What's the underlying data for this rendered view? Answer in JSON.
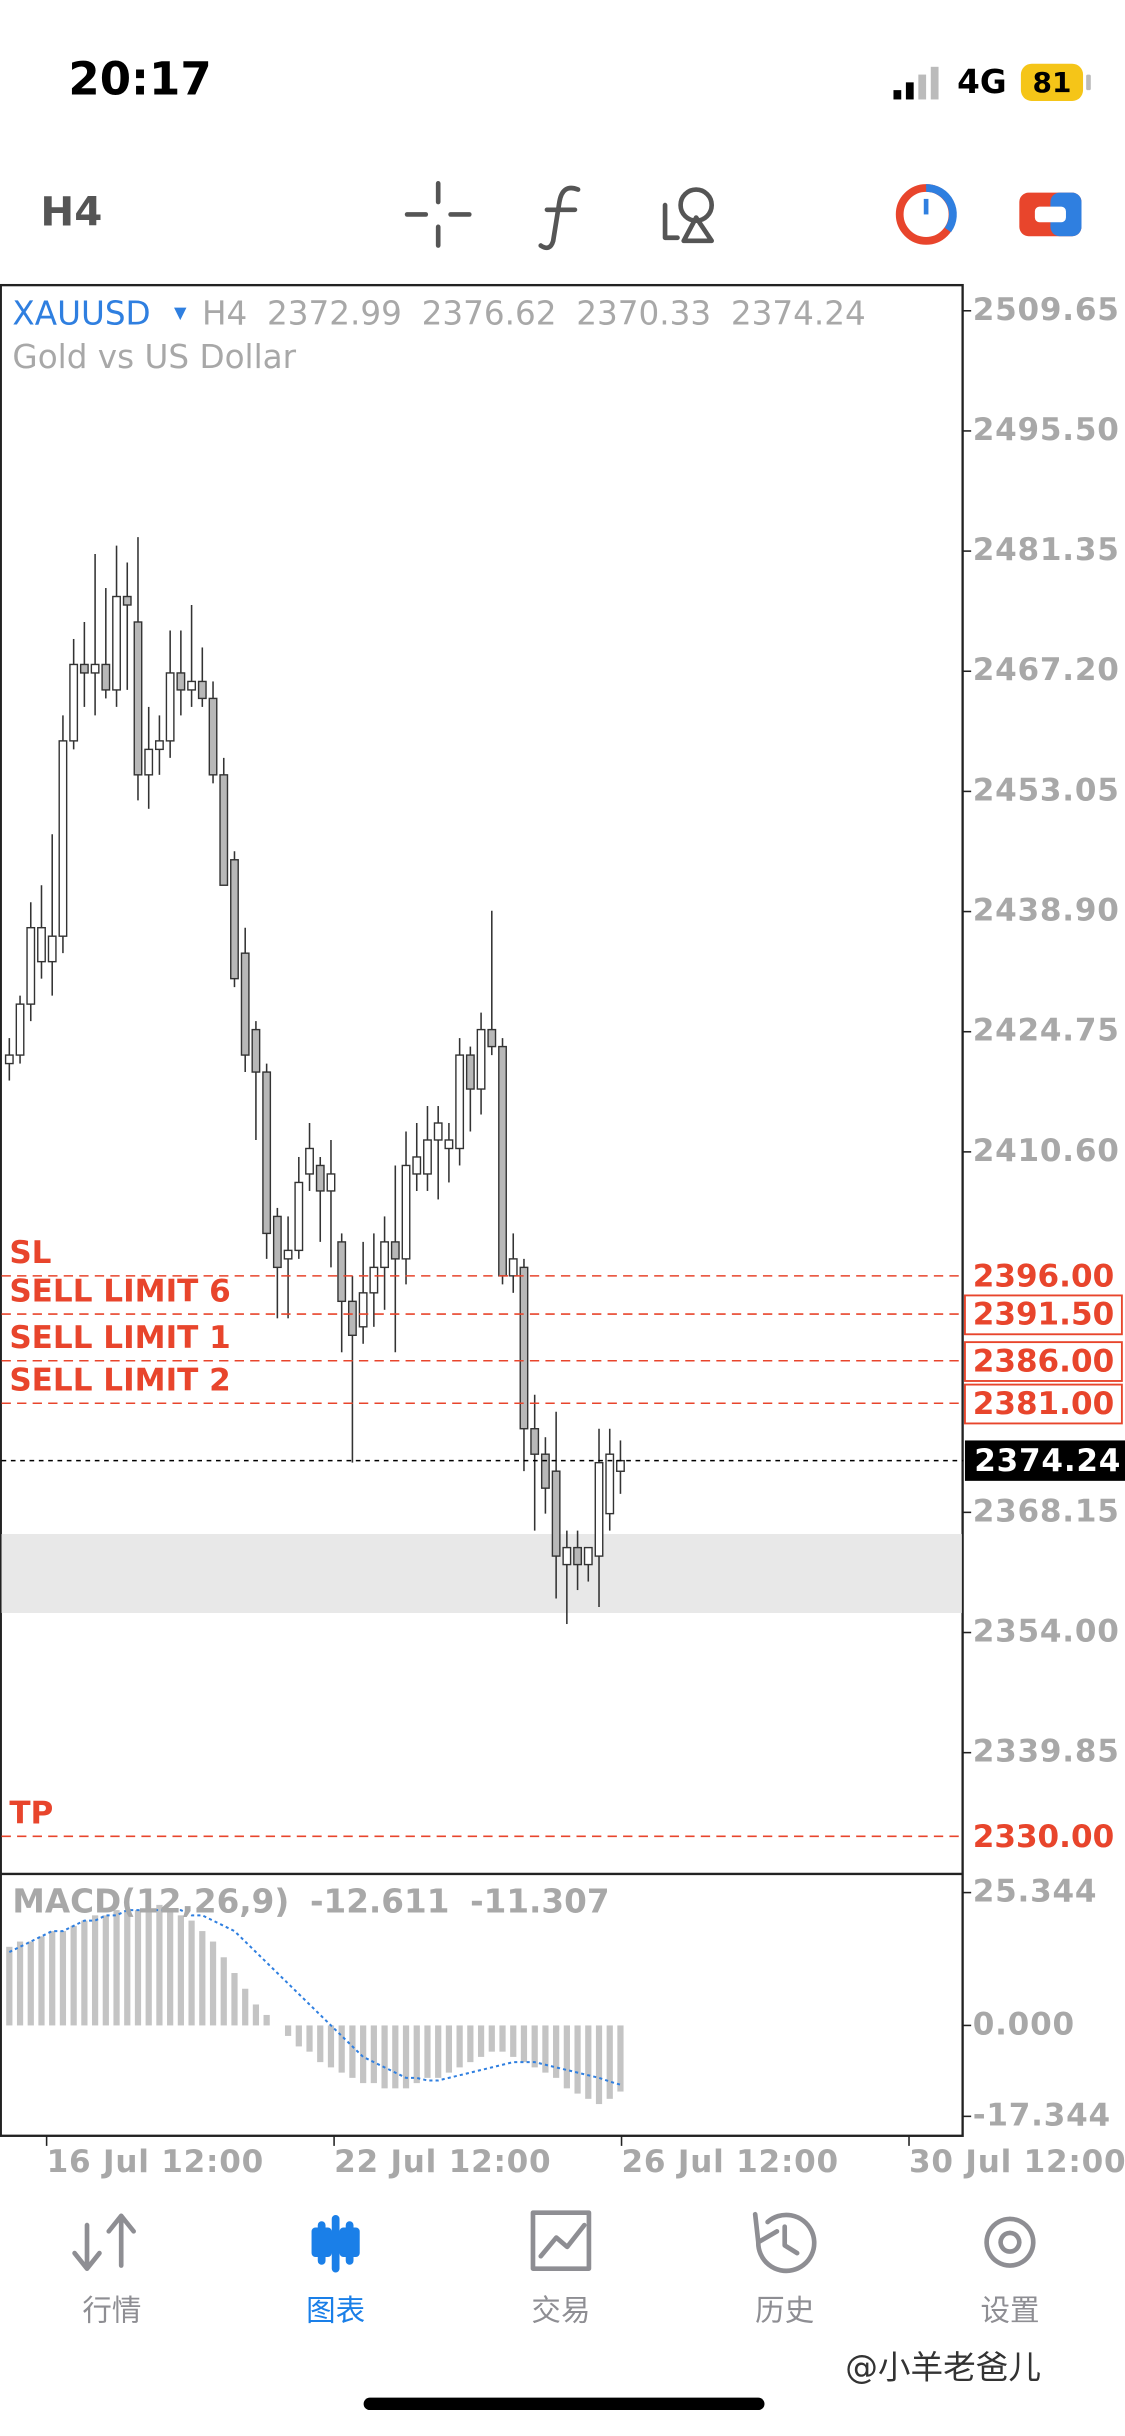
{
  "status_bar": {
    "time": "20:17",
    "network": "4G",
    "battery": "81"
  },
  "toolbar": {
    "timeframe": "H4"
  },
  "chart_data": {
    "type": "candlestick",
    "symbol": "XAUUSD",
    "timeframe": "H4",
    "subtitle": "Gold vs US Dollar",
    "open": [
      2421,
      2422,
      2428,
      2433,
      2433,
      2436,
      2459,
      2468,
      2467,
      2468,
      2465,
      2476,
      2473,
      2455,
      2458,
      2459,
      2467,
      2465,
      2466,
      2464,
      2455,
      2445,
      2434,
      2425,
      2420,
      2403,
      2398,
      2399,
      2408,
      2409,
      2406,
      2400,
      2393,
      2390,
      2394,
      2397,
      2400,
      2398,
      2408,
      2408,
      2412,
      2411,
      2411,
      2422,
      2418,
      2425,
      2423,
      2396,
      2397,
      2378,
      2375,
      2373,
      2362,
      2364,
      2362,
      2363,
      2368,
      2372.99
    ],
    "high": [
      2424,
      2429,
      2440,
      2442,
      2448,
      2462,
      2471,
      2473,
      2481,
      2477,
      2482,
      2480,
      2483,
      2463,
      2462,
      2472,
      2472,
      2475,
      2470,
      2466,
      2457,
      2446,
      2437,
      2426,
      2421,
      2404,
      2403,
      2410,
      2414,
      2410,
      2412,
      2401,
      2396,
      2400,
      2401,
      2403,
      2409,
      2413,
      2414,
      2416,
      2416,
      2414,
      2424,
      2423,
      2427,
      2439,
      2424,
      2401,
      2398,
      2382,
      2377,
      2380,
      2366,
      2366,
      2364,
      2378,
      2378,
      2376.62
    ],
    "low": [
      2419,
      2421,
      2426,
      2431,
      2429,
      2434,
      2458,
      2463,
      2462,
      2464,
      2463,
      2465,
      2452,
      2451,
      2455,
      2457,
      2462,
      2463,
      2463,
      2454,
      2442,
      2430,
      2420,
      2412,
      2398,
      2391,
      2391,
      2398,
      2406,
      2400,
      2397,
      2387,
      2374,
      2388,
      2390,
      2392,
      2387,
      2395,
      2406,
      2406,
      2405,
      2407,
      2409,
      2413,
      2415,
      2422,
      2395,
      2394,
      2373,
      2366,
      2368,
      2358,
      2355,
      2359,
      2360,
      2357,
      2366,
      2370.33
    ],
    "close": [
      2422,
      2428,
      2437,
      2437,
      2436,
      2459,
      2468,
      2467,
      2468,
      2465,
      2476,
      2475,
      2455,
      2458,
      2459,
      2467,
      2465,
      2466,
      2464,
      2455,
      2442,
      2431,
      2422,
      2420,
      2401,
      2397,
      2399,
      2407,
      2411,
      2406,
      2408,
      2393,
      2389,
      2394,
      2397,
      2400,
      2398,
      2409,
      2410,
      2412,
      2414,
      2412,
      2422,
      2418,
      2425,
      2423,
      2396,
      2398,
      2378,
      2375,
      2371,
      2363,
      2364,
      2362,
      2364,
      2374,
      2375,
      2374.24
    ],
    "up_color": "#ffffff",
    "down_color": "#b8b8b8",
    "ylim": [
      2325.75,
      2512.76
    ],
    "yticks": [
      2509.65,
      {
        "value": 2495.5,
        "label": "2495.50"
      },
      2481.35,
      {
        "value": 2467.2,
        "label": "2467.20"
      },
      2453.05,
      {
        "value": 2438.9,
        "label": "2438.90"
      },
      2424.75,
      {
        "value": 2410.6,
        "label": "2410.60"
      },
      2368.15,
      {
        "value": 2354,
        "label": "2354.00"
      },
      2339.85
    ],
    "xticks": [
      "16 Jul 12:00",
      "22 Jul 12:00",
      "26 Jul 12:00",
      "30 Jul 12:00"
    ],
    "levels": [
      {
        "name": "SL",
        "value": 2396,
        "label": "2396.00",
        "boxed": false
      },
      {
        "name": "SELL LIMIT 6",
        "value": 2391.5,
        "label": "2391.50",
        "boxed": true
      },
      {
        "name": "SELL LIMIT 1",
        "value": 2386,
        "label": "2386.00",
        "boxed": true
      },
      {
        "name": "SELL LIMIT 2",
        "value": 2381,
        "label": "2381.00",
        "boxed": true
      },
      {
        "name": "TP",
        "value": 2330,
        "label": "2330.00",
        "boxed": false
      }
    ],
    "level_color": "#e8452c",
    "shaded_zone": [
      2356.3,
      2365.6
    ],
    "macd": {
      "title": "MACD(12,26,9)",
      "ylim": [
        -21.2,
        28.6
      ],
      "yticks": [
        25.344,
        {
          "value": 0,
          "label": "0.000"
        },
        -17.344
      ],
      "histogram": [
        15,
        16,
        16,
        17,
        18,
        18,
        19,
        20,
        21,
        21,
        22,
        22,
        22,
        22,
        23,
        22,
        21,
        20,
        18,
        16,
        13,
        10,
        7,
        4,
        2,
        0,
        -2,
        -4,
        -5,
        -7,
        -8,
        -9,
        -10,
        -11,
        -11,
        -12,
        -12,
        -12,
        -11,
        -10,
        -10,
        -9,
        -8,
        -7,
        -6,
        -5,
        -5,
        -6,
        -7,
        -8,
        -9,
        -10,
        -12,
        -13,
        -14,
        -15,
        -14,
        -12.611
      ],
      "signal": [
        14,
        15,
        16,
        17,
        18,
        18,
        19,
        20,
        20,
        21,
        21,
        22,
        22,
        22,
        22,
        22,
        22,
        21,
        21,
        20,
        19,
        18,
        16,
        14,
        12,
        10,
        8,
        6,
        4,
        2,
        0,
        -2,
        -4,
        -6,
        -7,
        -8,
        -9,
        -10,
        -10,
        -10.5,
        -10.5,
        -10,
        -9.5,
        -9,
        -8.5,
        -8,
        -7.5,
        -7,
        -7,
        -7,
        -7.5,
        -8,
        -8.5,
        -9,
        -9.5,
        -10,
        -10.7,
        -11.307
      ],
      "histogram_color": "#c4c4c4",
      "signal_color": "#2f7fe0"
    }
  },
  "tabs": {
    "items": [
      "行情",
      "图表",
      "交易",
      "历史",
      "设置"
    ],
    "active": 1
  },
  "watermark": "@小羊老爸儿"
}
